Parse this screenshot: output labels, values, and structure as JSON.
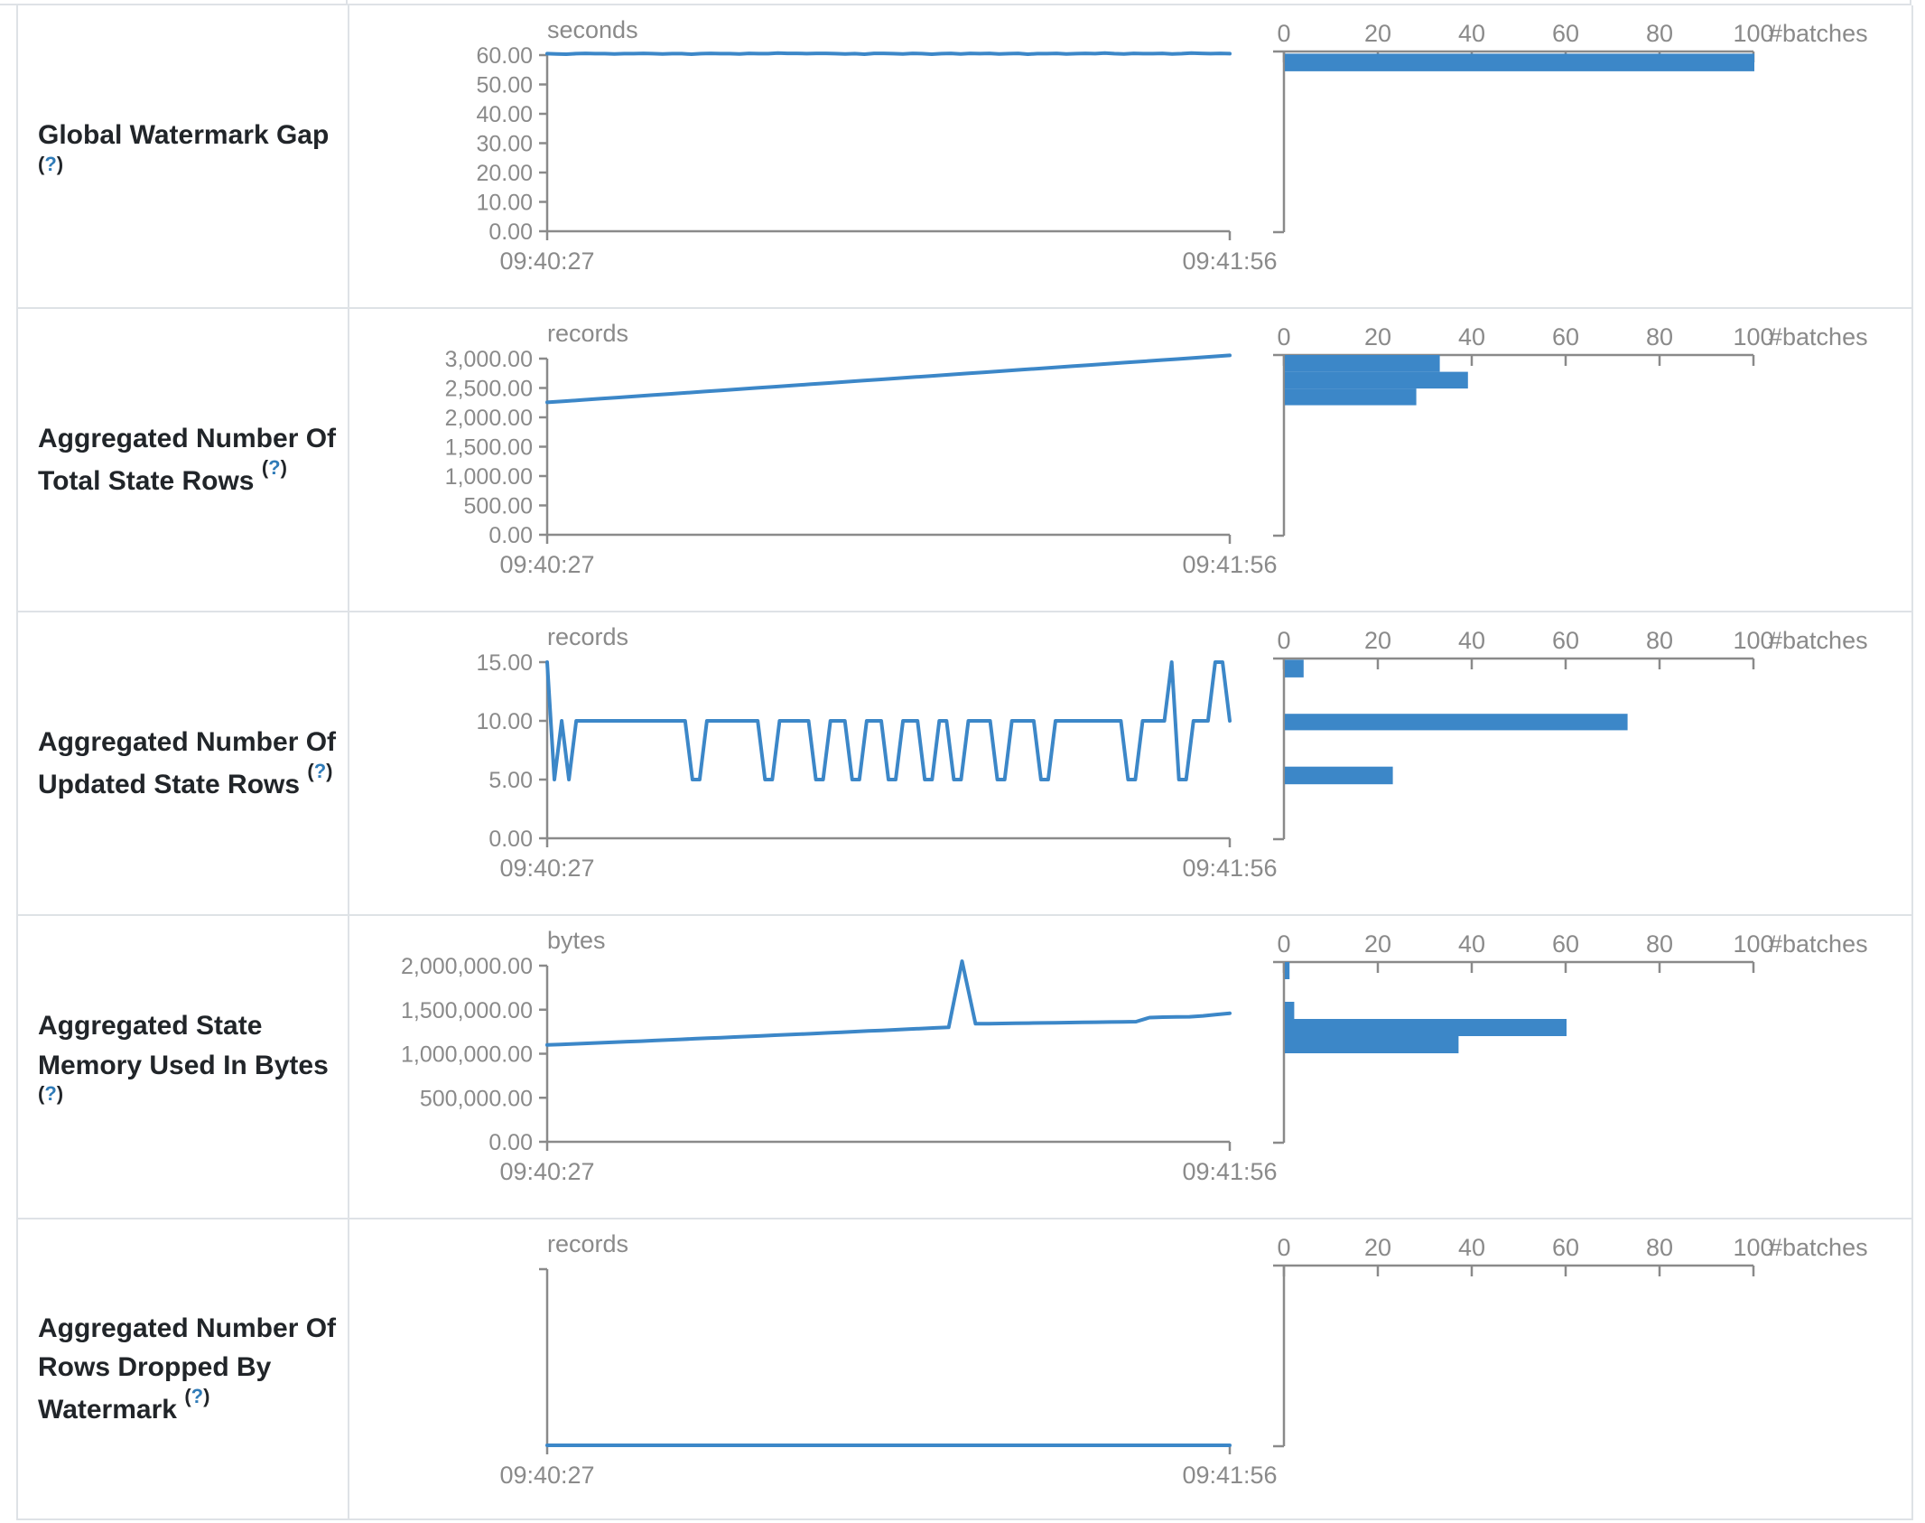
{
  "colors": {
    "accent": "#3c87c8",
    "axis_gray": "#8a8a8a",
    "border": "#dee2e6",
    "label_text": "#212529",
    "help_blue": "#2f7bb8"
  },
  "table": {
    "rows": [
      {
        "label": "Global Watermark Gap",
        "help": {
          "open": "(",
          "q": "?",
          "close": ")"
        }
      },
      {
        "label": "Aggregated Number Of Total State Rows",
        "help": {
          "open": "(",
          "q": "?",
          "close": ")"
        }
      },
      {
        "label": "Aggregated Number Of Updated State Rows",
        "help": {
          "open": "(",
          "q": "?",
          "close": ")"
        }
      },
      {
        "label": "Aggregated State Memory Used In Bytes",
        "help": {
          "open": "(",
          "q": "?",
          "close": ")"
        }
      },
      {
        "label": "Aggregated Number Of Rows Dropped By Watermark",
        "help": {
          "open": "(",
          "q": "?",
          "close": ")"
        }
      }
    ]
  },
  "chart_data": [
    {
      "row": "Global Watermark Gap",
      "type": "line",
      "unit": "seconds",
      "x_range": [
        "09:40:27",
        "09:41:56"
      ],
      "y_ticks": [
        "60.00",
        "50.00",
        "40.00",
        "30.00",
        "20.00",
        "10.00",
        "0.00"
      ],
      "y_max": 60,
      "values": [
        60.5,
        60.4,
        60.3,
        60.5,
        60.6,
        60.5,
        60.5,
        60.4,
        60.5,
        60.5,
        60.6,
        60.5,
        60.4,
        60.5,
        60.5,
        60.3,
        60.5,
        60.6,
        60.5,
        60.5,
        60.4,
        60.6,
        60.5,
        60.5,
        60.7,
        60.6,
        60.6,
        60.5,
        60.6,
        60.6,
        60.5,
        60.4,
        60.5,
        60.3,
        60.6,
        60.6,
        60.5,
        60.4,
        60.6,
        60.5,
        60.3,
        60.5,
        60.6,
        60.4,
        60.6,
        60.5,
        60.6,
        60.4,
        60.5,
        60.6,
        60.3,
        60.5,
        60.5,
        60.6,
        60.4,
        60.5,
        60.6,
        60.5,
        60.7,
        60.5,
        60.4,
        60.6,
        60.5,
        60.5,
        60.6,
        60.4,
        60.5,
        60.7,
        60.6,
        60.5,
        60.6,
        60.5
      ],
      "histogram": {
        "type": "bar",
        "orientation": "horizontal",
        "x_ticks": [
          0,
          20,
          40,
          60,
          80,
          100
        ],
        "x_label": "#batches",
        "bars": [
          {
            "count": 100,
            "bucket": [
              54.5,
              60.5
            ]
          }
        ]
      }
    },
    {
      "row": "Aggregated Number Of Total State Rows",
      "type": "line",
      "unit": "records",
      "x_range": [
        "09:40:27",
        "09:41:56"
      ],
      "y_ticks": [
        "3,000.00",
        "2,500.00",
        "2,000.00",
        "1,500.00",
        "1,000.00",
        "500.00",
        "0.00"
      ],
      "y_max": 3000,
      "values": [
        2255,
        2276,
        2296,
        2317,
        2337,
        2358,
        2378,
        2399,
        2419,
        2440,
        2460,
        2481,
        2501,
        2522,
        2542,
        2563,
        2583,
        2604,
        2624,
        2645,
        2665,
        2686,
        2706,
        2727,
        2747,
        2768,
        2788,
        2809,
        2829,
        2850,
        2870,
        2891,
        2911,
        2932,
        2952,
        2973,
        2993,
        3014,
        3034,
        3055
      ],
      "histogram": {
        "type": "bar",
        "orientation": "horizontal",
        "x_ticks": [
          0,
          20,
          40,
          60,
          80,
          100
        ],
        "x_label": "#batches",
        "bars": [
          {
            "count": 33,
            "bucket": [
              2776,
              3061
            ]
          },
          {
            "count": 39,
            "bucket": [
              2491,
              2776
            ]
          },
          {
            "count": 28,
            "bucket": [
              2206,
              2491
            ]
          }
        ]
      }
    },
    {
      "row": "Aggregated Number Of Updated State Rows",
      "type": "line",
      "unit": "records",
      "x_range": [
        "09:40:27",
        "09:41:56"
      ],
      "y_ticks": [
        "15.00",
        "10.00",
        "5.00",
        "0.00"
      ],
      "y_max": 15,
      "values": [
        15,
        5,
        10,
        5,
        10,
        10,
        10,
        10,
        10,
        10,
        10,
        10,
        10,
        10,
        10,
        10,
        10,
        10,
        10,
        10,
        5,
        5,
        10,
        10,
        10,
        10,
        10,
        10,
        10,
        10,
        5,
        5,
        10,
        10,
        10,
        10,
        10,
        5,
        5,
        10,
        10,
        10,
        5,
        5,
        10,
        10,
        10,
        5,
        5,
        10,
        10,
        10,
        5,
        5,
        10,
        10,
        5,
        5,
        10,
        10,
        10,
        10,
        5,
        5,
        10,
        10,
        10,
        10,
        5,
        5,
        10,
        10,
        10,
        10,
        10,
        10,
        10,
        10,
        10,
        10,
        5,
        5,
        10,
        10,
        10,
        10,
        15,
        5,
        5,
        10,
        10,
        10,
        15,
        15,
        10
      ],
      "histogram": {
        "type": "bar",
        "orientation": "horizontal",
        "x_ticks": [
          0,
          20,
          40,
          60,
          80,
          100
        ],
        "x_label": "#batches",
        "bars": [
          {
            "count": 4,
            "bucket": [
              13.7,
              15.2
            ]
          },
          {
            "count": 73,
            "bucket": [
              9.2,
              10.6
            ]
          },
          {
            "count": 23,
            "bucket": [
              4.6,
              6.1
            ]
          }
        ]
      }
    },
    {
      "row": "Aggregated State Memory Used In Bytes",
      "type": "line",
      "unit": "bytes",
      "x_range": [
        "09:40:27",
        "09:41:56"
      ],
      "y_ticks": [
        "2,000,000.00",
        "1,500,000.00",
        "1,000,000.00",
        "500,000.00",
        "0.00"
      ],
      "y_max": 2000000,
      "values": [
        1100000,
        1105000,
        1112000,
        1118000,
        1124000,
        1130000,
        1137000,
        1143000,
        1150000,
        1156000,
        1163000,
        1170000,
        1176000,
        1183000,
        1190000,
        1196000,
        1203000,
        1210000,
        1216000,
        1223000,
        1230000,
        1237000,
        1244000,
        1251000,
        1258000,
        1265000,
        1272000,
        1279000,
        1286000,
        1293000,
        1300000,
        2050000,
        1340000,
        1342000,
        1344000,
        1346000,
        1348000,
        1350000,
        1352000,
        1354000,
        1356000,
        1358000,
        1360000,
        1362000,
        1364000,
        1410000,
        1415000,
        1418000,
        1420000,
        1430000,
        1445000,
        1460000
      ],
      "histogram": {
        "type": "bar",
        "orientation": "horizontal",
        "x_ticks": [
          0,
          20,
          40,
          60,
          80,
          100
        ],
        "x_label": "#batches",
        "bars": [
          {
            "count": 1,
            "bucket": [
              1846000,
              2041000
            ]
          },
          {
            "count": 2,
            "bucket": [
              1395000,
              1590000
            ]
          },
          {
            "count": 60,
            "bucket": [
              1200000,
              1395000
            ]
          },
          {
            "count": 37,
            "bucket": [
              1005000,
              1200000
            ]
          }
        ]
      }
    },
    {
      "row": "Aggregated Number Of Rows Dropped By Watermark",
      "type": "line",
      "unit": "records",
      "x_range": [
        "09:40:27",
        "09:41:56"
      ],
      "y_ticks": [],
      "y_max": 1,
      "values": [
        0,
        0,
        0,
        0,
        0,
        0,
        0,
        0,
        0,
        0
      ],
      "histogram": {
        "type": "bar",
        "orientation": "horizontal",
        "x_ticks": [
          0,
          20,
          40,
          60,
          80,
          100
        ],
        "x_label": "#batches",
        "bars": []
      }
    }
  ]
}
